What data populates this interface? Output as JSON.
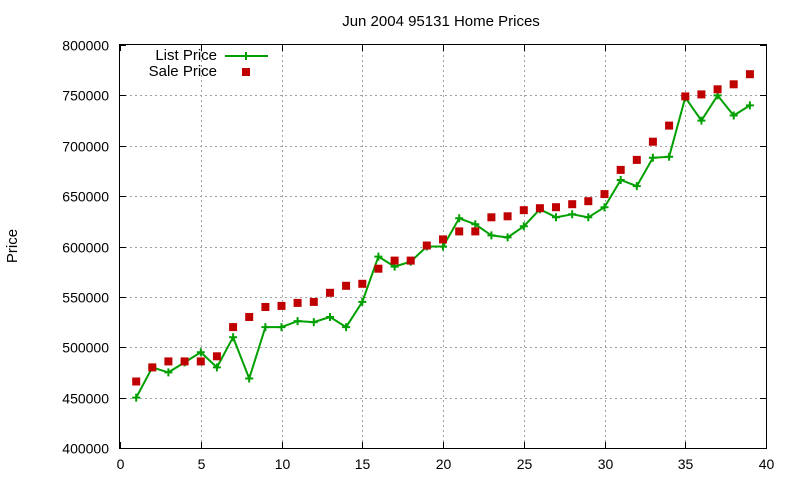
{
  "chart_data": {
    "type": "line",
    "title": "Jun 2004 95131 Home Prices",
    "xlabel": "",
    "ylabel": "Price",
    "xlim": [
      0,
      40
    ],
    "ylim": [
      400000,
      800000
    ],
    "xticks": [
      0,
      5,
      10,
      15,
      20,
      25,
      30,
      35,
      40
    ],
    "yticks": [
      400000,
      450000,
      500000,
      550000,
      600000,
      650000,
      700000,
      750000,
      800000
    ],
    "grid": true,
    "legend_position": "top-left",
    "series": [
      {
        "name": "List Price",
        "style": "line-plus",
        "color": "#00a000",
        "x": [
          1,
          2,
          3,
          4,
          5,
          6,
          7,
          8,
          9,
          10,
          11,
          12,
          13,
          14,
          15,
          16,
          17,
          18,
          19,
          20,
          21,
          22,
          23,
          24,
          25,
          26,
          27,
          28,
          29,
          30,
          31,
          32,
          33,
          34,
          35,
          36,
          37,
          38,
          39
        ],
        "y": [
          450000,
          480000,
          475000,
          485000,
          495000,
          480000,
          510000,
          469000,
          520000,
          520000,
          526000,
          525000,
          530000,
          520000,
          545000,
          590000,
          580000,
          585000,
          600000,
          600000,
          628000,
          622000,
          611000,
          609000,
          620000,
          637000,
          629000,
          632000,
          629000,
          639000,
          666000,
          660000,
          688000,
          689000,
          748000,
          725000,
          750000,
          730000,
          740000
        ]
      },
      {
        "name": "Sale Price",
        "style": "squares",
        "color": "#c00000",
        "x": [
          1,
          2,
          3,
          4,
          5,
          6,
          7,
          8,
          9,
          10,
          11,
          12,
          13,
          14,
          15,
          16,
          17,
          18,
          19,
          20,
          21,
          22,
          23,
          24,
          25,
          26,
          27,
          28,
          29,
          30,
          31,
          32,
          33,
          34,
          35,
          36,
          37,
          38,
          39
        ],
        "y": [
          466000,
          480000,
          486000,
          486000,
          486000,
          491000,
          520000,
          530000,
          540000,
          541000,
          544000,
          545000,
          554000,
          561000,
          563000,
          578000,
          586000,
          586000,
          601000,
          607000,
          615000,
          615000,
          629000,
          630000,
          636000,
          638000,
          639000,
          642000,
          645000,
          652000,
          676000,
          686000,
          704000,
          720000,
          749000,
          751000,
          756000,
          761000,
          771000
        ]
      }
    ]
  }
}
